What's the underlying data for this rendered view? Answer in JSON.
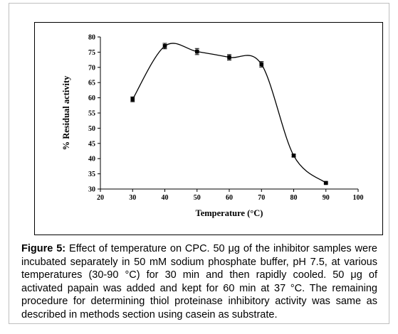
{
  "chart_data": {
    "type": "line",
    "xlabel": "Temperature (°C)",
    "ylabel": "% Residual activity",
    "xlim": [
      20,
      100
    ],
    "ylim": [
      30,
      80
    ],
    "xticks": [
      20,
      30,
      40,
      50,
      60,
      70,
      80,
      90,
      100
    ],
    "yticks": [
      30,
      35,
      40,
      45,
      50,
      55,
      60,
      65,
      70,
      75,
      80
    ],
    "grid": false,
    "smooth": true,
    "series": [
      {
        "x": [
          30,
          40,
          50,
          60,
          70,
          80,
          90
        ],
        "y": [
          59.5,
          77,
          75.2,
          73.3,
          71,
          41,
          32
        ],
        "err": [
          0.8,
          0.9,
          1.0,
          0.9,
          0.9,
          0.4,
          0.3
        ],
        "color": "#000000"
      }
    ]
  },
  "caption": {
    "label": "Figure 5:",
    "text": " Effect of temperature on CPC. 50 μg of the inhibitor samples were incubated separately in 50 mM sodium phosphate buffer, pH 7.5, at various temperatures (30-90 °C) for 30 min and then rapidly cooled. 50 μg of activated papain was added and kept for 60 min at 37 °C. The remaining procedure for determining thiol proteinase inhibitory activity was same as described in methods section using casein as substrate."
  }
}
